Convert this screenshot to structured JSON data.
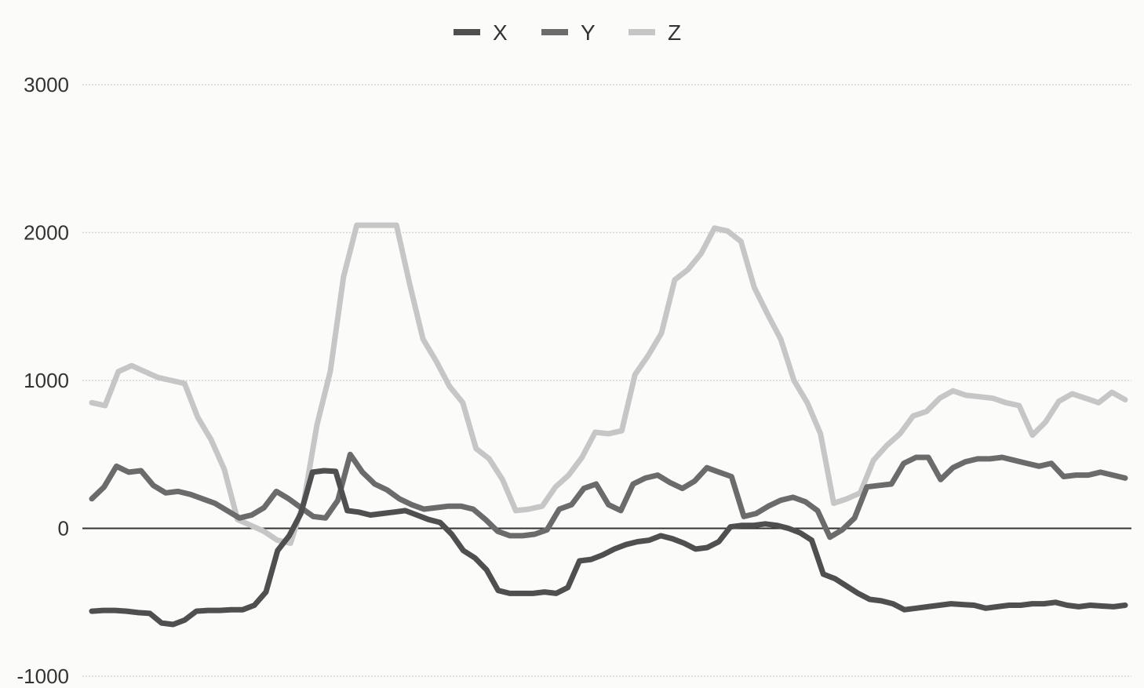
{
  "chart_data": {
    "type": "line",
    "title": "",
    "xlabel": "",
    "ylabel": "",
    "ylim": [
      -1000,
      3000
    ],
    "yticks": [
      3000,
      2000,
      1000,
      0,
      -1000
    ],
    "yticks_labels": [
      "3000",
      "2000",
      "1000",
      "0",
      "-1000"
    ],
    "grid": true,
    "legend_position": "top-center",
    "series": [
      {
        "name": "X",
        "color": "#4f4f4f",
        "values": [
          -560,
          -555,
          -555,
          -560,
          -570,
          -575,
          -640,
          -650,
          -620,
          -560,
          -555,
          -555,
          -550,
          -550,
          -520,
          -430,
          -150,
          -50,
          100,
          380,
          390,
          385,
          120,
          110,
          90,
          100,
          110,
          120,
          90,
          60,
          40,
          -40,
          -150,
          -200,
          -280,
          -420,
          -440,
          -440,
          -440,
          -430,
          -440,
          -400,
          -220,
          -210,
          -180,
          -140,
          -110,
          -90,
          -80,
          -50,
          -70,
          -100,
          -140,
          -130,
          -90,
          10,
          20,
          20,
          30,
          20,
          0,
          -30,
          -80,
          -310,
          -340,
          -390,
          -440,
          -480,
          -490,
          -510,
          -550,
          -540,
          -530,
          -520,
          -510,
          -515,
          -520,
          -540,
          -530,
          -520,
          -520,
          -510,
          -510,
          -500,
          -520,
          -530,
          -520,
          -525,
          -530,
          -520
        ]
      },
      {
        "name": "Y",
        "color": "#6b6b6b",
        "values": [
          200,
          280,
          420,
          380,
          390,
          290,
          240,
          250,
          230,
          200,
          170,
          120,
          70,
          90,
          140,
          250,
          200,
          140,
          80,
          70,
          190,
          500,
          380,
          300,
          260,
          200,
          160,
          130,
          140,
          150,
          150,
          130,
          60,
          -20,
          -50,
          -50,
          -40,
          -10,
          130,
          160,
          270,
          300,
          160,
          120,
          300,
          340,
          360,
          310,
          270,
          320,
          410,
          380,
          350,
          80,
          100,
          150,
          190,
          210,
          180,
          120,
          -60,
          -10,
          70,
          280,
          290,
          300,
          440,
          480,
          480,
          330,
          410,
          450,
          470,
          470,
          480,
          460,
          440,
          420,
          440,
          350,
          360,
          360,
          380,
          360,
          340
        ]
      },
      {
        "name": "Z",
        "color": "#c6c6c6",
        "values": [
          850,
          830,
          1060,
          1100,
          1060,
          1020,
          1000,
          980,
          750,
          600,
          400,
          60,
          20,
          -20,
          -80,
          -100,
          180,
          700,
          1060,
          1700,
          2050,
          2050,
          2050,
          2050,
          1650,
          1280,
          1130,
          960,
          850,
          540,
          470,
          330,
          120,
          130,
          150,
          280,
          360,
          480,
          650,
          640,
          660,
          1040,
          1170,
          1320,
          1680,
          1750,
          1860,
          2030,
          2010,
          1940,
          1630,
          1450,
          1280,
          1000,
          850,
          640,
          170,
          200,
          240,
          460,
          560,
          640,
          760,
          790,
          880,
          930,
          900,
          890,
          880,
          850,
          830,
          630,
          720,
          860,
          910,
          880,
          850,
          920,
          870
        ]
      }
    ]
  }
}
